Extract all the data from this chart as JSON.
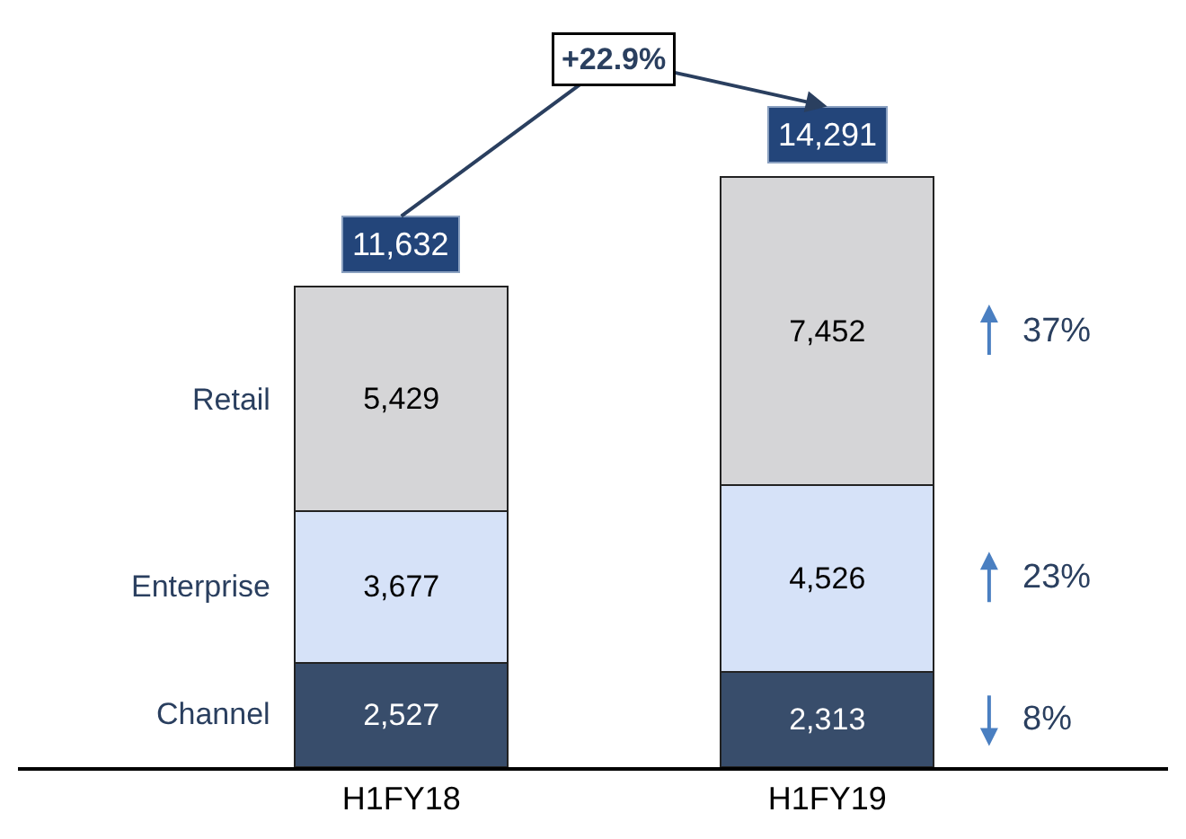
{
  "chart_data": {
    "type": "bar",
    "stacked": true,
    "categories": [
      "H1FY18",
      "H1FY19"
    ],
    "series": [
      {
        "name": "Channel",
        "color": "#384d6b",
        "values": [
          2527,
          2313
        ],
        "value_labels": [
          "2,527",
          "2,313"
        ]
      },
      {
        "name": "Enterprise",
        "color": "#d6e2f8",
        "values": [
          3677,
          4526
        ],
        "value_labels": [
          "3,677",
          "4,526"
        ]
      },
      {
        "name": "Retail",
        "color": "#d5d5d7",
        "values": [
          5429,
          7452
        ],
        "value_labels": [
          "5,429",
          "7,452"
        ]
      }
    ],
    "totals": [
      "11,632",
      "14,291"
    ],
    "annotations": [
      "+22.9%",
      "8%",
      "23%",
      "37%"
    ],
    "legend": false
  }
}
